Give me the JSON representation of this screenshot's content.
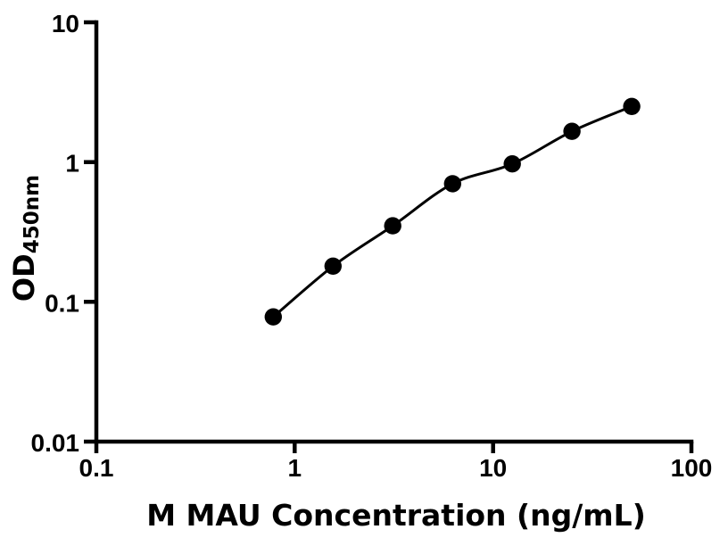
{
  "figure": {
    "background_color": "#ffffff",
    "foreground_color": "#000000"
  },
  "chart_data": {
    "type": "scatter",
    "title": "",
    "xlabel": "M MAU Concentration (ng/mL)",
    "ylabel_base": "OD",
    "ylabel_subscript": "450nm",
    "x_scale": "log",
    "y_scale": "log",
    "xlim": [
      0.1,
      100
    ],
    "ylim": [
      0.01,
      10
    ],
    "x_ticks": [
      0.1,
      1,
      10,
      100
    ],
    "x_tick_labels": [
      "0.1",
      "1",
      "10",
      "100"
    ],
    "y_ticks": [
      10,
      1,
      0.1,
      0.01
    ],
    "y_tick_labels": [
      "10",
      "1",
      "0.1",
      "0.01"
    ],
    "grid": false,
    "legend": "none",
    "series": [
      {
        "x": [
          0.78,
          1.56,
          3.12,
          6.25,
          12.5,
          25,
          50
        ],
        "y": [
          0.078,
          0.18,
          0.35,
          0.7,
          0.97,
          1.66,
          2.5
        ],
        "marker": "filled-circle",
        "line": "smooth",
        "color": "#000000"
      }
    ]
  }
}
